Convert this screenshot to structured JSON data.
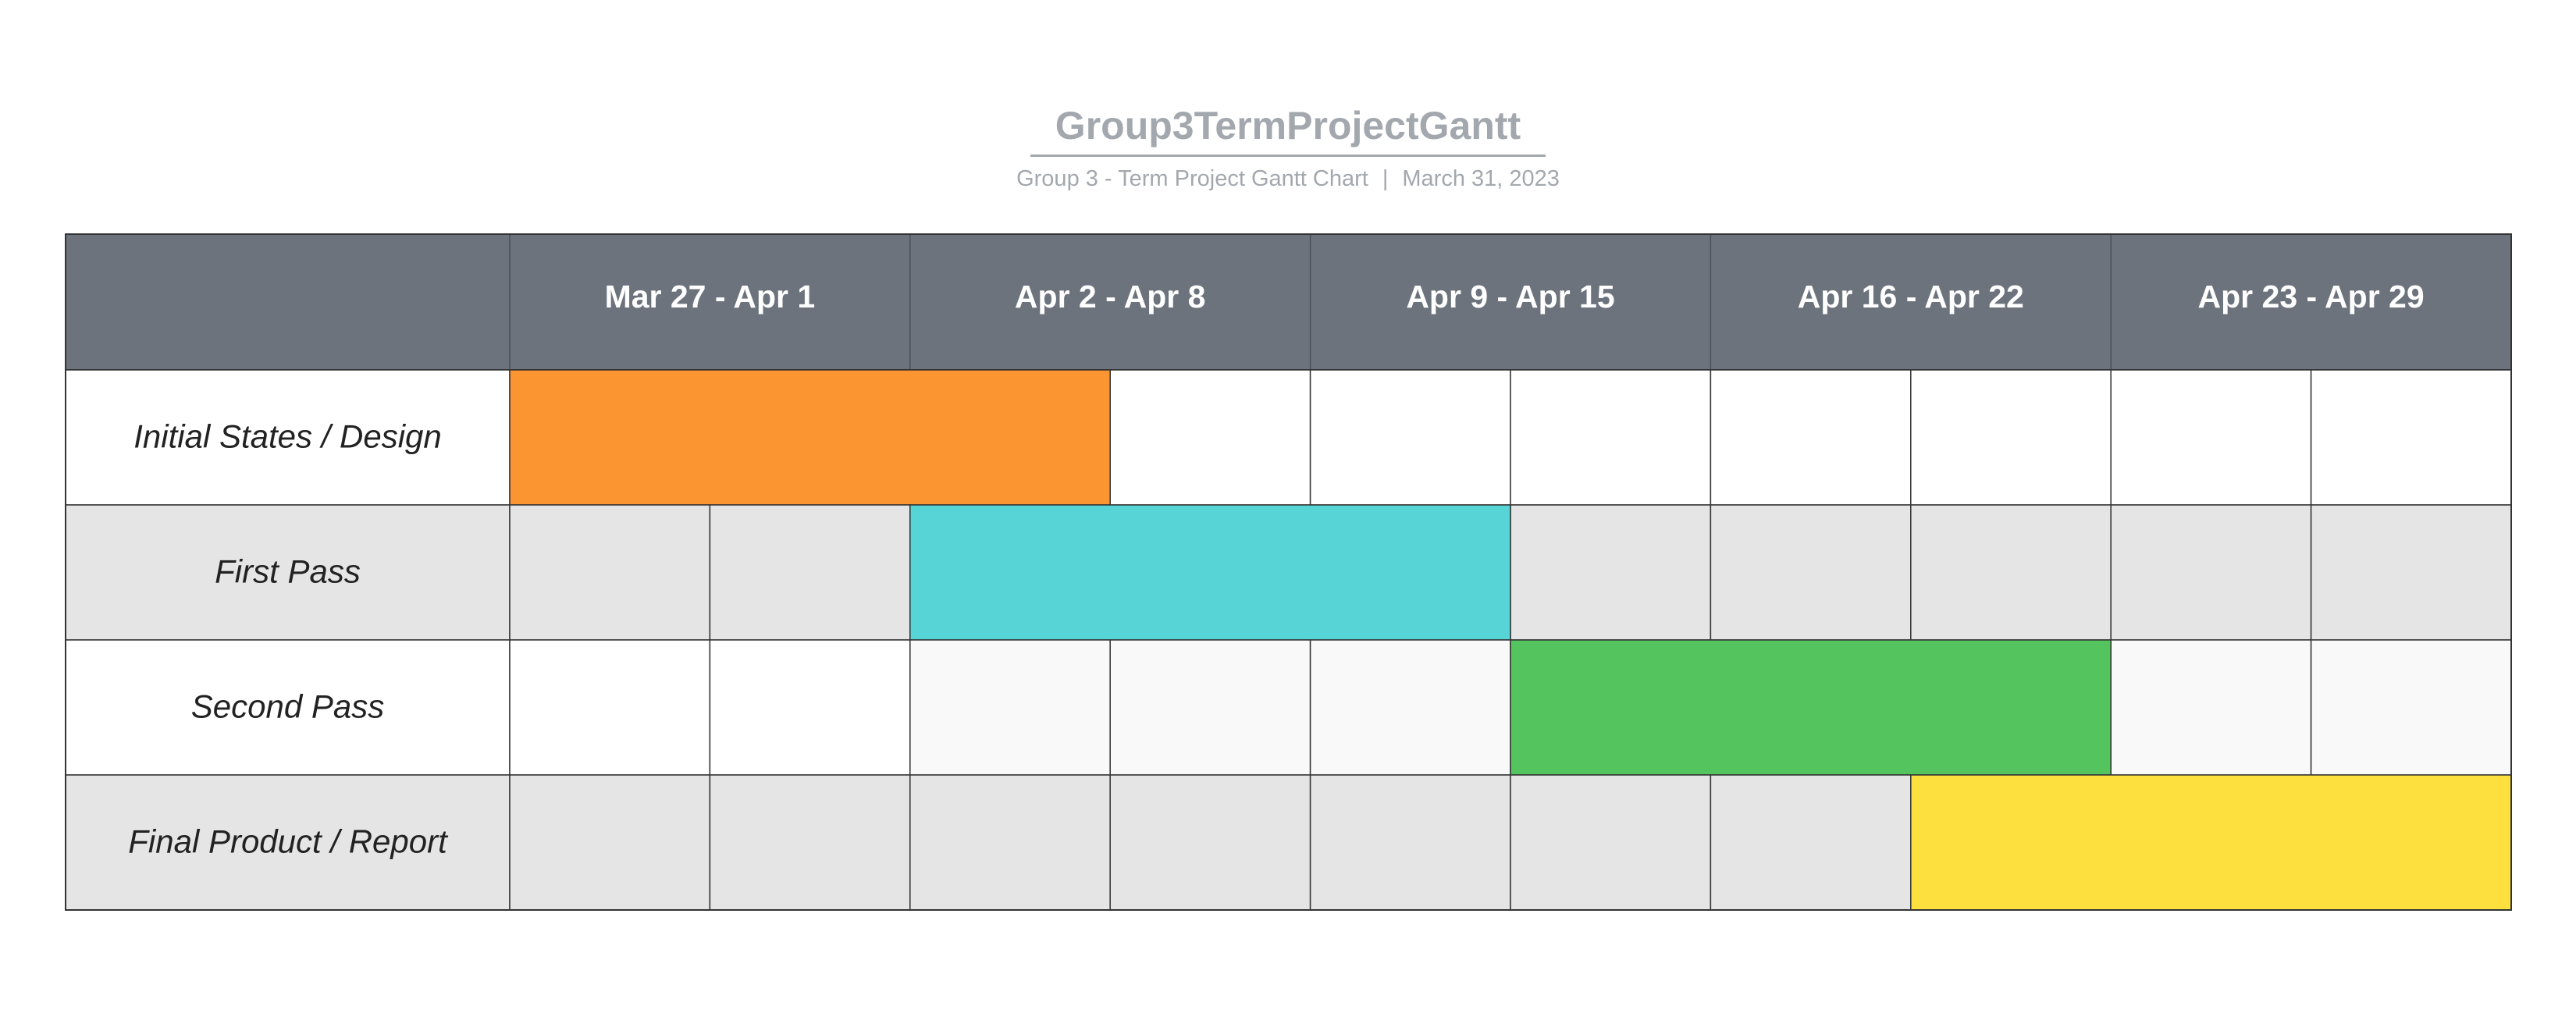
{
  "chart_data": {
    "type": "gantt",
    "title": "Group3TermProjectGantt",
    "subtitle_project": "Group 3 - Term Project Gantt Chart",
    "subtitle_separator": "|",
    "subtitle_date": "March 31, 2023",
    "periods": [
      "Mar 27 - Apr 1",
      "Apr 2 - Apr 8",
      "Apr 9 - Apr 15",
      "Apr 16 - Apr 22",
      "Apr 23 - Apr 29"
    ],
    "subdivisions_per_period": 2,
    "tasks": [
      {
        "label": "Initial States / Design",
        "start": 0,
        "end": 3,
        "color": "#fb9531"
      },
      {
        "label": "First Pass",
        "start": 2,
        "end": 5,
        "color": "#57d4d6"
      },
      {
        "label": "Second Pass",
        "start": 5,
        "end": 8,
        "color": "#54c45f"
      },
      {
        "label": "Final Product / Report",
        "start": 7,
        "end": 10,
        "color": "#fde03e"
      }
    ],
    "colors": {
      "header_bg": "#6c737d",
      "row_light": "#ffffff",
      "row_light_alt": "#f9f9f9",
      "row_dark": "#e5e5e5",
      "grid": "#333333",
      "title": "#a3a8ae"
    }
  }
}
